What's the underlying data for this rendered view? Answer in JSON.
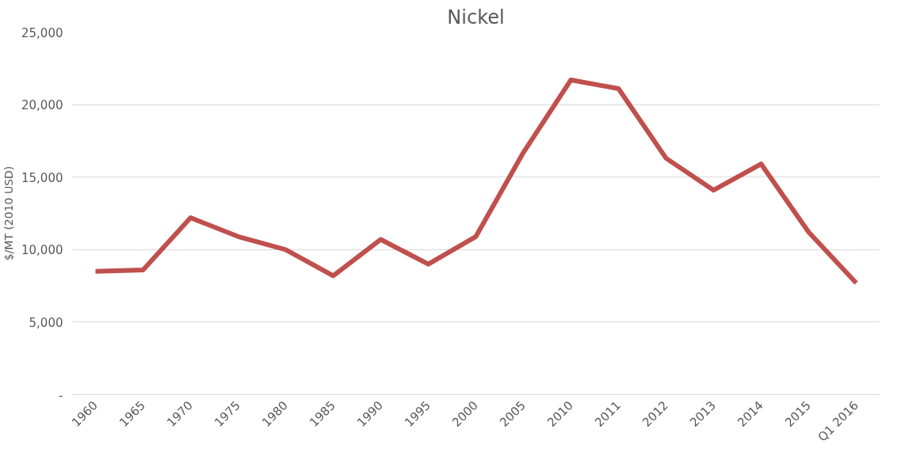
{
  "chart_data": {
    "type": "line",
    "title": "Nickel",
    "ylabel": "$/MT (2010 USD)",
    "categories": [
      "1960",
      "1965",
      "1970",
      "1975",
      "1980",
      "1985",
      "1990",
      "1995",
      "2000",
      "2005",
      "2010",
      "2011",
      "2012",
      "2013",
      "2014",
      "2015",
      "Q1 2016"
    ],
    "series": [
      {
        "color": "#c0504d",
        "values": [
          8500,
          8600,
          12200,
          10900,
          10000,
          8200,
          10700,
          9000,
          10900,
          16700,
          21700,
          21100,
          16300,
          14100,
          15900,
          11200,
          7700
        ]
      }
    ],
    "ylim": [
      0,
      25000
    ],
    "yticks": [
      {
        "value": 0,
        "label": "-"
      },
      {
        "value": 5000,
        "label": "5,000"
      },
      {
        "value": 10000,
        "label": "10,000"
      },
      {
        "value": 15000,
        "label": "15,000"
      },
      {
        "value": 20000,
        "label": "20,000"
      },
      {
        "value": 25000,
        "label": "25,000"
      }
    ],
    "grid": "y",
    "marker": "none",
    "line_style": "solid"
  }
}
